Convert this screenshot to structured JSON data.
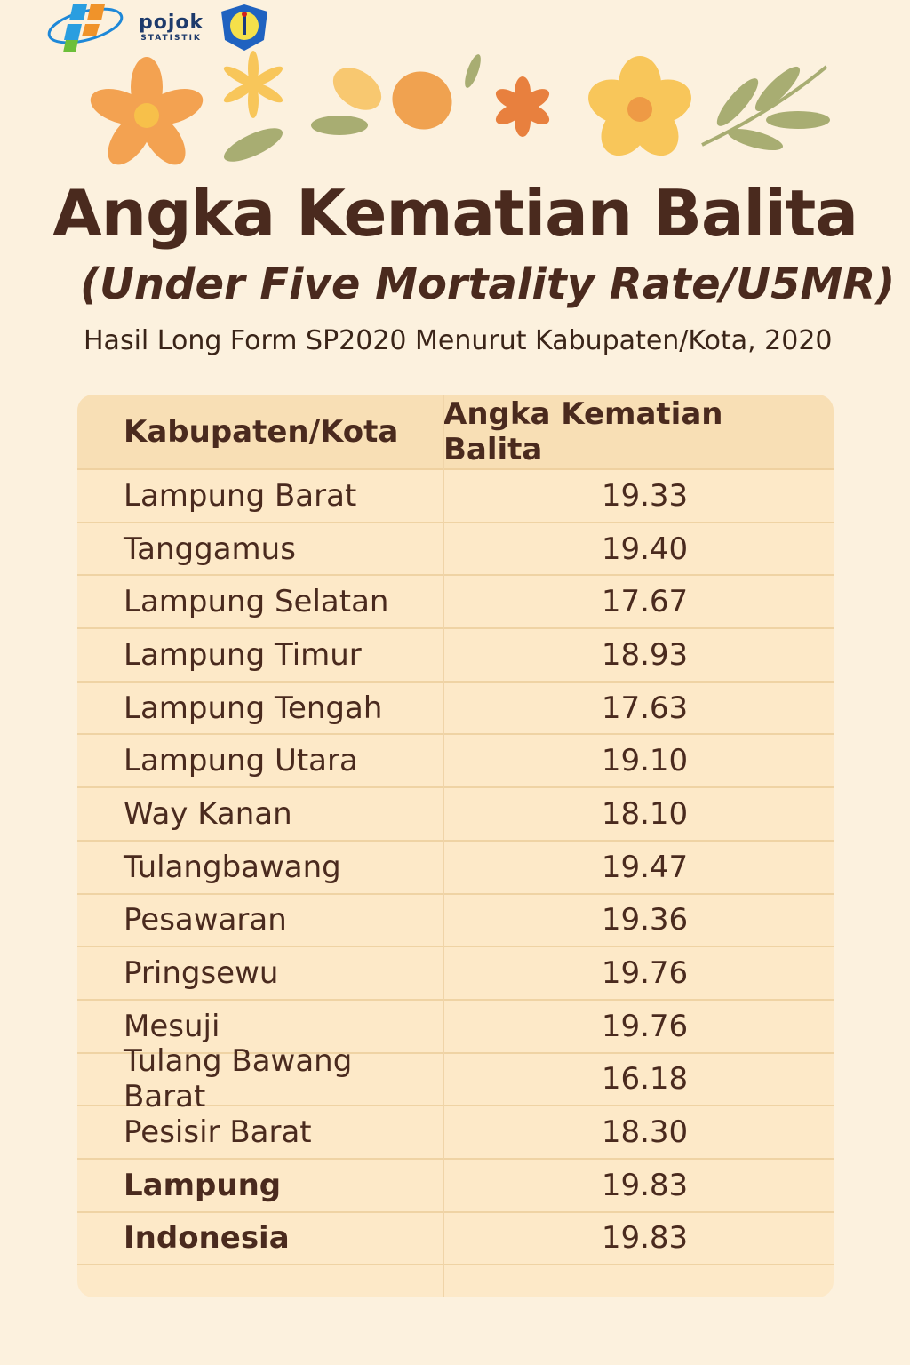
{
  "logos": {
    "bps": "BPS",
    "pojok_line1": "pojok",
    "pojok_line2": "STATISTIK",
    "unila": "Universitas Lampung"
  },
  "title": "Angka Kematian Balita",
  "subtitle": "(Under Five Mortality Rate/U5MR)",
  "description": "Hasil Long Form SP2020 Menurut Kabupaten/Kota, 2020",
  "table": {
    "headers": [
      "Kabupaten/Kota",
      "Angka Kematian Balita"
    ],
    "rows": [
      {
        "name": "Lampung Barat",
        "value": "19.33"
      },
      {
        "name": "Tanggamus",
        "value": "19.40"
      },
      {
        "name": "Lampung Selatan",
        "value": "17.67"
      },
      {
        "name": "Lampung Timur",
        "value": "18.93"
      },
      {
        "name": "Lampung Tengah",
        "value": "17.63"
      },
      {
        "name": "Lampung Utara",
        "value": "19.10"
      },
      {
        "name": "Way Kanan",
        "value": "18.10"
      },
      {
        "name": "Tulangbawang",
        "value": "19.47"
      },
      {
        "name": "Pesawaran",
        "value": "19.36"
      },
      {
        "name": "Pringsewu",
        "value": "19.76"
      },
      {
        "name": "Mesuji",
        "value": "19.76"
      },
      {
        "name": "Tulang Bawang Barat",
        "value": "16.18"
      },
      {
        "name": "Pesisir Barat",
        "value": "18.30"
      },
      {
        "name": "Lampung",
        "value": "19.83"
      },
      {
        "name": "Indonesia",
        "value": "19.83"
      }
    ]
  },
  "colors": {
    "background": "#fcf1de",
    "text": "#4a2a1e",
    "table": "#fde9c8",
    "header": "#f8dfb5"
  }
}
